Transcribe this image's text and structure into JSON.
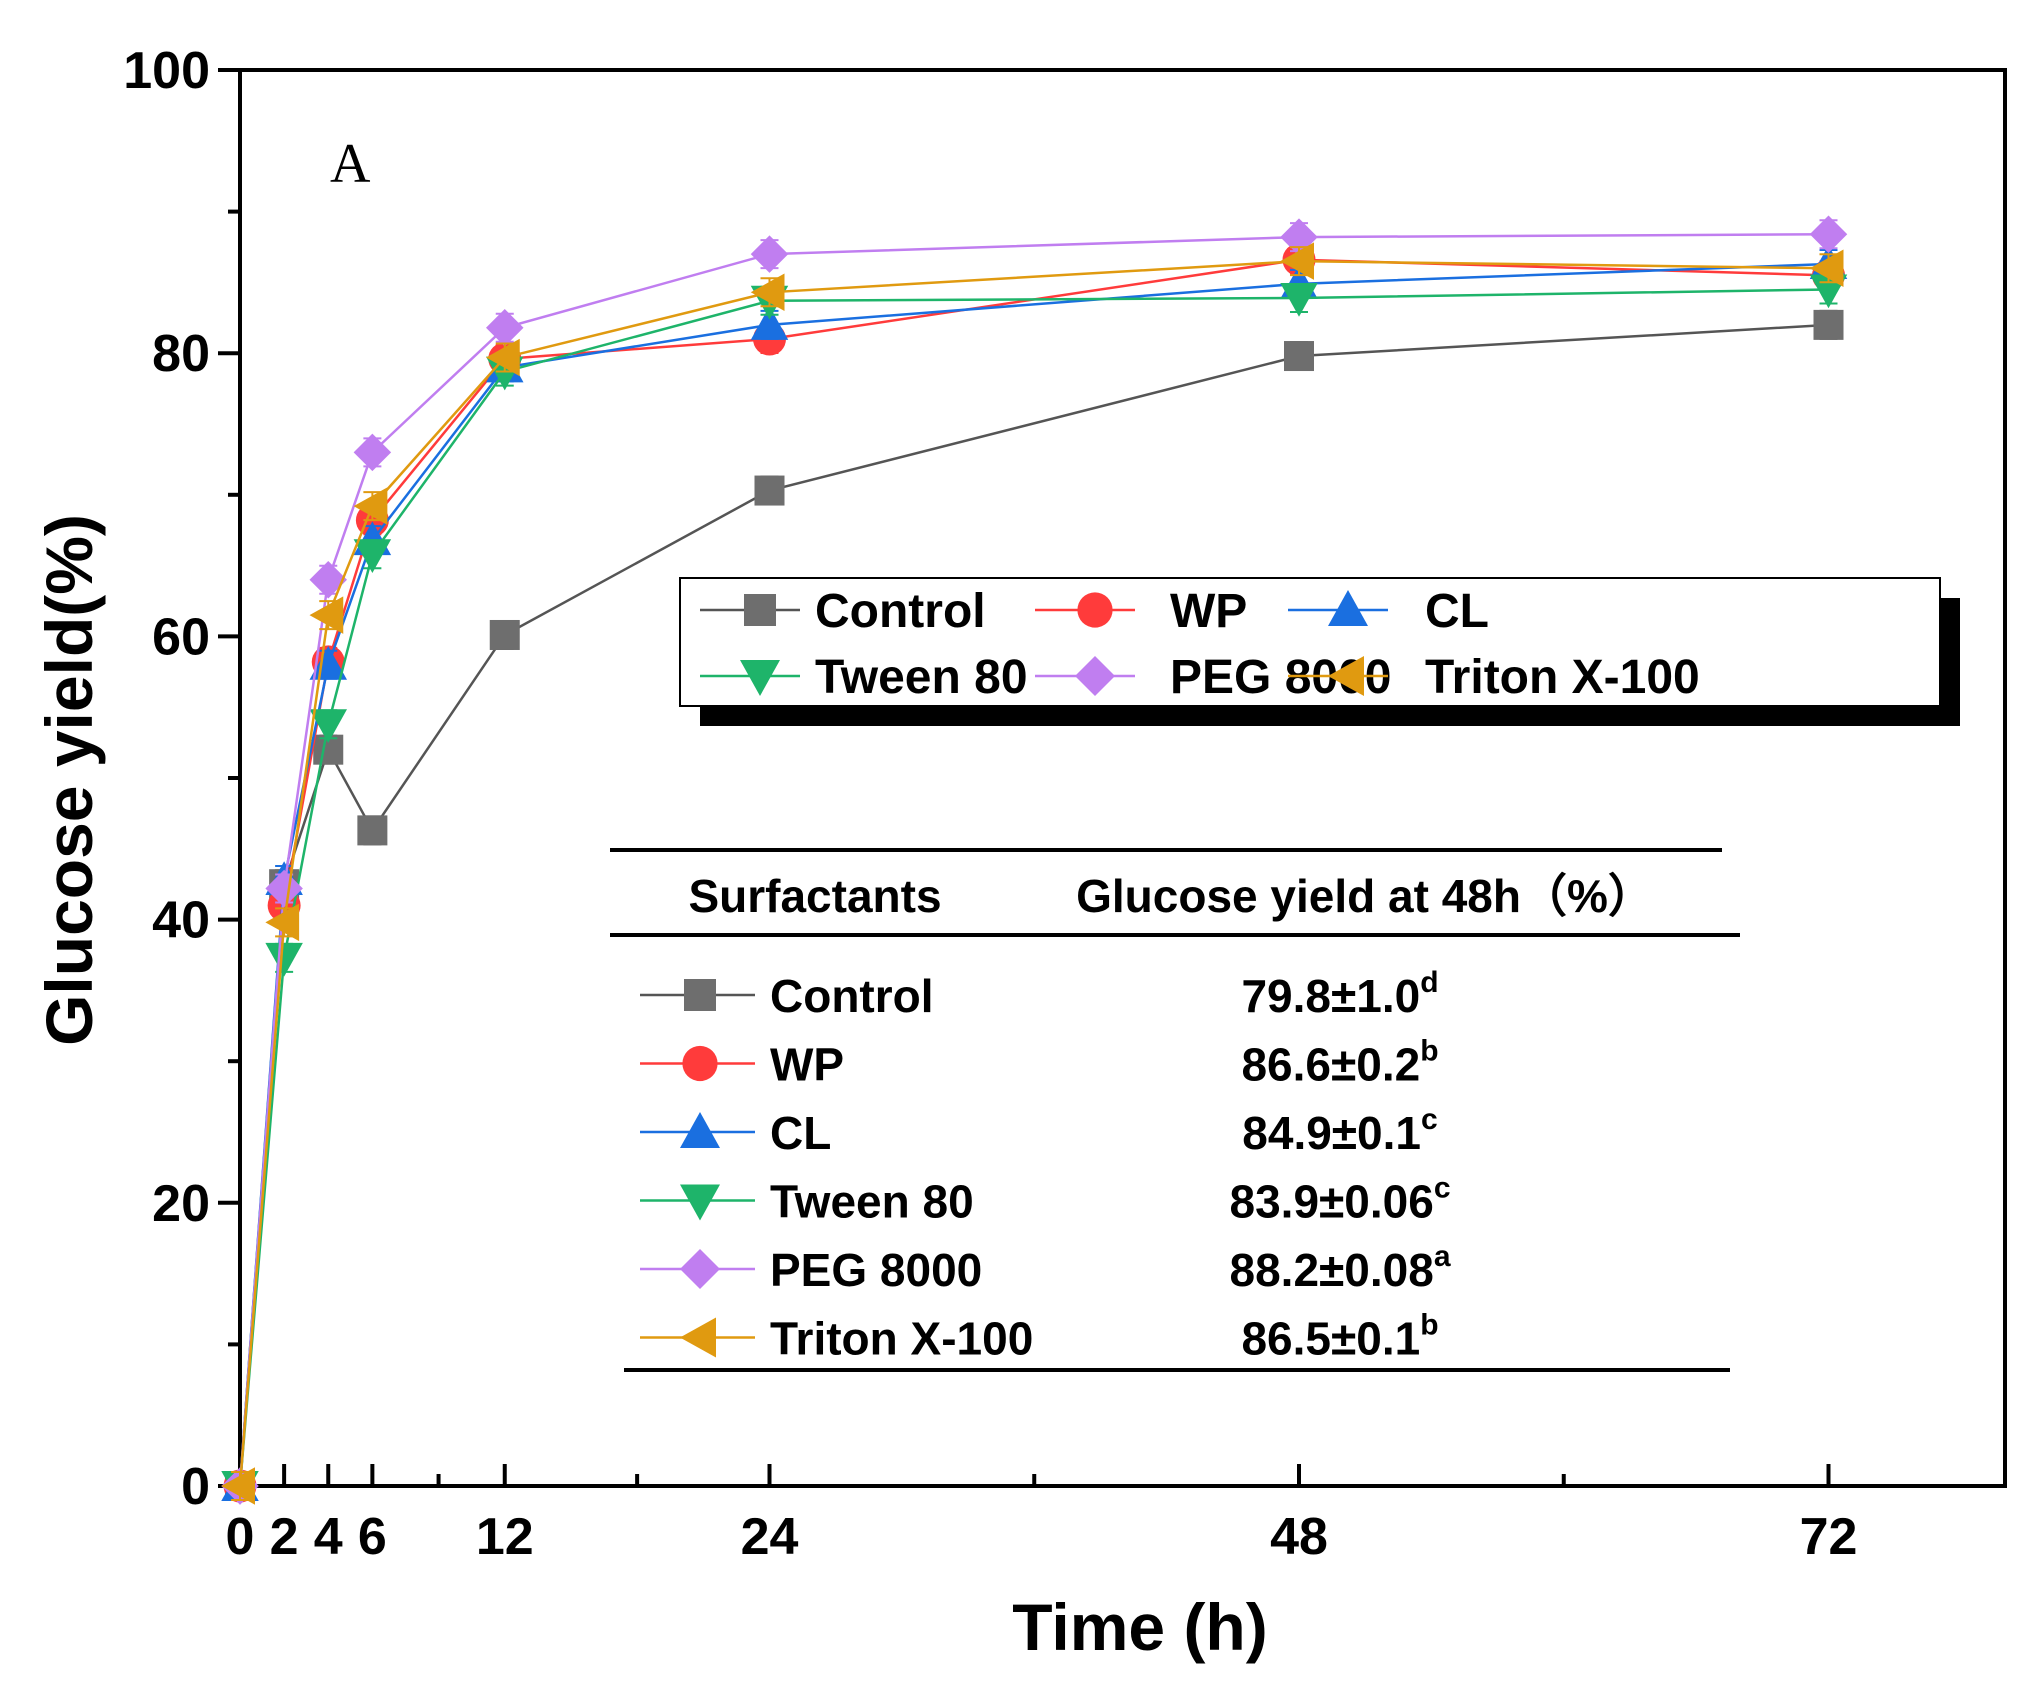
{
  "chart_data": {
    "type": "line",
    "panel_label": "A",
    "xlabel": "Time (h)",
    "ylabel": "Glucose yield(%)",
    "xlim": [
      0,
      80
    ],
    "ylim": [
      0,
      100
    ],
    "x_ticks": [
      0,
      2,
      4,
      6,
      12,
      24,
      48,
      72
    ],
    "y_ticks": [
      0,
      20,
      40,
      60,
      80,
      100
    ],
    "x": [
      0,
      2,
      4,
      6,
      12,
      24,
      48,
      72
    ],
    "series": [
      {
        "name": "Control",
        "marker": "square",
        "color": "#6e6e6e",
        "line_color": "#555555",
        "values": [
          0,
          42.5,
          52.0,
          46.3,
          60.1,
          70.3,
          79.8,
          82.0
        ]
      },
      {
        "name": "WP",
        "marker": "circle",
        "color": "#ff3b3b",
        "line_color": "#ff3b3b",
        "values": [
          0,
          41.0,
          58.2,
          68.2,
          79.6,
          81.0,
          86.6,
          85.5
        ]
      },
      {
        "name": "CL",
        "marker": "triangle-up",
        "color": "#1a6fe0",
        "line_color": "#1a6fe0",
        "values": [
          0,
          42.8,
          58.0,
          66.8,
          79.0,
          82.0,
          84.9,
          86.3
        ]
      },
      {
        "name": "Tween 80",
        "marker": "triangle-down",
        "color": "#1eb46a",
        "line_color": "#1eb46a",
        "values": [
          0,
          37.3,
          53.8,
          65.8,
          78.7,
          83.7,
          83.9,
          84.5
        ]
      },
      {
        "name": "PEG 8000",
        "marker": "diamond",
        "color": "#c07ef0",
        "line_color": "#c07ef0",
        "values": [
          0,
          42.2,
          64.0,
          73.0,
          81.8,
          87.0,
          88.2,
          88.4
        ]
      },
      {
        "name": "Triton X-100",
        "marker": "triangle-left",
        "color": "#e09a10",
        "line_color": "#e09a10",
        "values": [
          0,
          39.8,
          61.5,
          69.2,
          79.7,
          84.3,
          86.5,
          86.0
        ]
      }
    ],
    "legend_position": "center-right",
    "table": {
      "headers": [
        "Surfactants",
        "Glucose yield at 48h（%）"
      ],
      "rows": [
        {
          "name": "Control",
          "value": "79.8±1.0",
          "sup": "d"
        },
        {
          "name": "WP",
          "value": "86.6±0.2",
          "sup": "b"
        },
        {
          "name": "CL",
          "value": "84.9±0.1",
          "sup": "c"
        },
        {
          "name": "Tween 80",
          "value": "83.9±0.06",
          "sup": "c"
        },
        {
          "name": "PEG 8000",
          "value": "88.2±0.08",
          "sup": "a"
        },
        {
          "name": "Triton X-100",
          "value": "86.5±0.1",
          "sup": "b"
        }
      ]
    }
  }
}
